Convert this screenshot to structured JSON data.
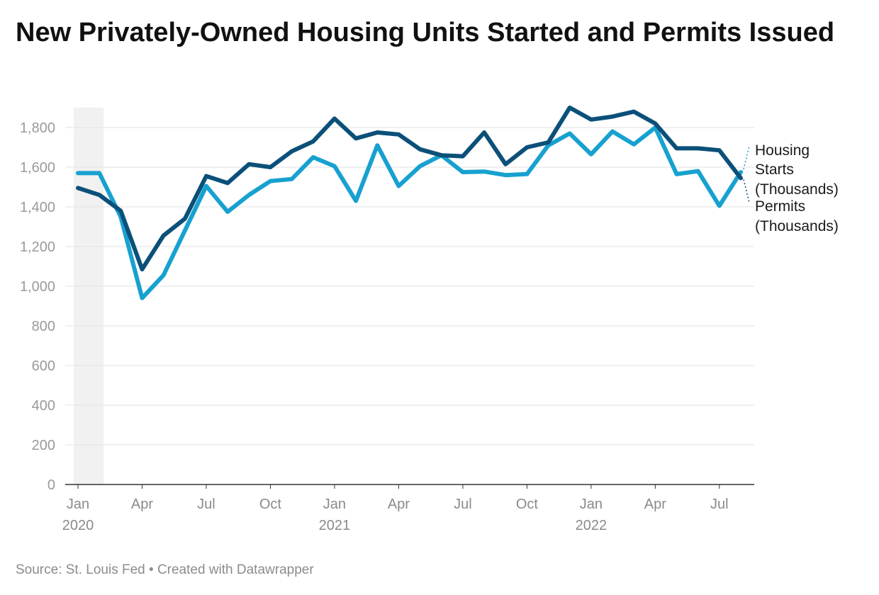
{
  "title": "New Privately-Owned Housing Units Started and Permits Issued",
  "footer": {
    "source": "Source: St. Louis Fed",
    "separator": "•",
    "credit": "Created with Datawrapper"
  },
  "chart_data": {
    "type": "line",
    "title": "New Privately-Owned Housing Units Started and Permits Issued",
    "xlabel": "",
    "ylabel": "",
    "ylim": [
      0,
      1900
    ],
    "yticks": [
      "0",
      "200",
      "400",
      "600",
      "800",
      "1,000",
      "1,200",
      "1,400",
      "1,600",
      "1,800"
    ],
    "x": [
      "2020-01",
      "2020-02",
      "2020-03",
      "2020-04",
      "2020-05",
      "2020-06",
      "2020-07",
      "2020-08",
      "2020-09",
      "2020-10",
      "2020-11",
      "2020-12",
      "2021-01",
      "2021-02",
      "2021-03",
      "2021-04",
      "2021-05",
      "2021-06",
      "2021-07",
      "2021-08",
      "2021-09",
      "2021-10",
      "2021-11",
      "2021-12",
      "2022-01",
      "2022-02",
      "2022-03",
      "2022-04",
      "2022-05",
      "2022-06",
      "2022-07",
      "2022-08"
    ],
    "xticks": [
      {
        "x": "2020-01",
        "label": "Jan",
        "year": "2020"
      },
      {
        "x": "2020-04",
        "label": "Apr",
        "year": ""
      },
      {
        "x": "2020-07",
        "label": "Jul",
        "year": ""
      },
      {
        "x": "2020-10",
        "label": "Oct",
        "year": ""
      },
      {
        "x": "2021-01",
        "label": "Jan",
        "year": "2021"
      },
      {
        "x": "2021-04",
        "label": "Apr",
        "year": ""
      },
      {
        "x": "2021-07",
        "label": "Jul",
        "year": ""
      },
      {
        "x": "2021-10",
        "label": "Oct",
        "year": ""
      },
      {
        "x": "2022-01",
        "label": "Jan",
        "year": "2022"
      },
      {
        "x": "2022-04",
        "label": "Apr",
        "year": ""
      },
      {
        "x": "2022-07",
        "label": "Jul",
        "year": ""
      }
    ],
    "shaded_range": [
      "2020-01",
      "2020-02"
    ],
    "grid": true,
    "series": [
      {
        "name": "Housing Starts (Thousands)",
        "label_lines": [
          "Housing",
          "Starts",
          "(Thousands)"
        ],
        "color": "#0b5079",
        "values": [
          1495,
          1460,
          1380,
          1085,
          1255,
          1340,
          1555,
          1520,
          1615,
          1600,
          1680,
          1730,
          1845,
          1745,
          1775,
          1765,
          1690,
          1660,
          1655,
          1775,
          1615,
          1700,
          1725,
          1900,
          1840,
          1855,
          1880,
          1820,
          1695,
          1695,
          1685,
          1545
        ]
      },
      {
        "name": "Permits (Thousands)",
        "label_lines": [
          "Permits",
          "(Thousands)"
        ],
        "color": "#17a1d0",
        "values": [
          1570,
          1570,
          1350,
          940,
          1055,
          1280,
          1505,
          1375,
          1460,
          1530,
          1540,
          1650,
          1605,
          1430,
          1710,
          1505,
          1605,
          1660,
          1575,
          1578,
          1560,
          1565,
          1710,
          1770,
          1665,
          1780,
          1715,
          1800,
          1565,
          1580,
          1405,
          1575
        ]
      }
    ]
  }
}
